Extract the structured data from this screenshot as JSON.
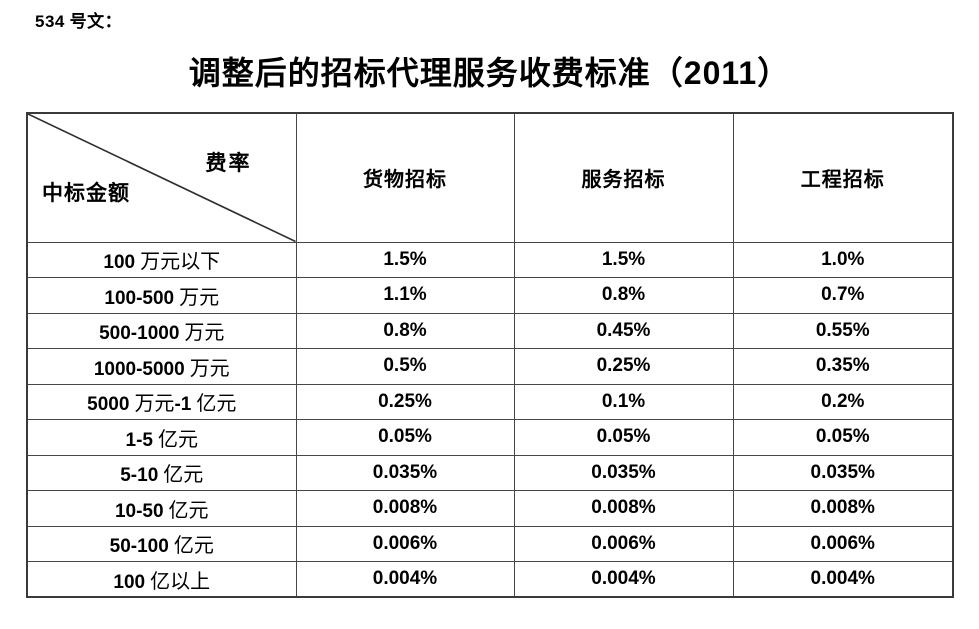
{
  "page": {
    "doc_number": "534 号文：",
    "title": "调整后的招标代理服务收费标准（2011）"
  },
  "table": {
    "corner": {
      "top_right": "费率",
      "bottom_left": "中标金额"
    },
    "columns": [
      "货物招标",
      "服务招标",
      "工程招标"
    ],
    "rows": [
      {
        "label": "100 万元以下",
        "values": [
          "1.5%",
          "1.5%",
          "1.0%"
        ]
      },
      {
        "label": "100-500 万元",
        "values": [
          "1.1%",
          "0.8%",
          "0.7%"
        ]
      },
      {
        "label": "500-1000 万元",
        "values": [
          "0.8%",
          "0.45%",
          "0.55%"
        ]
      },
      {
        "label": "1000-5000 万元",
        "values": [
          "0.5%",
          "0.25%",
          "0.35%"
        ]
      },
      {
        "label": "5000 万元-1 亿元",
        "values": [
          "0.25%",
          "0.1%",
          "0.2%"
        ]
      },
      {
        "label": "1-5 亿元",
        "values": [
          "0.05%",
          "0.05%",
          "0.05%"
        ]
      },
      {
        "label": "5-10 亿元",
        "values": [
          "0.035%",
          "0.035%",
          "0.035%"
        ]
      },
      {
        "label": "10-50 亿元",
        "values": [
          "0.008%",
          "0.008%",
          "0.008%"
        ]
      },
      {
        "label": "50-100 亿元",
        "values": [
          "0.006%",
          "0.006%",
          "0.006%"
        ]
      },
      {
        "label": "100 亿以上",
        "values": [
          "0.004%",
          "0.004%",
          "0.004%"
        ]
      }
    ]
  },
  "colors": {
    "background": "#ffffff",
    "text": "#000000",
    "border": "#3a3a3a"
  }
}
